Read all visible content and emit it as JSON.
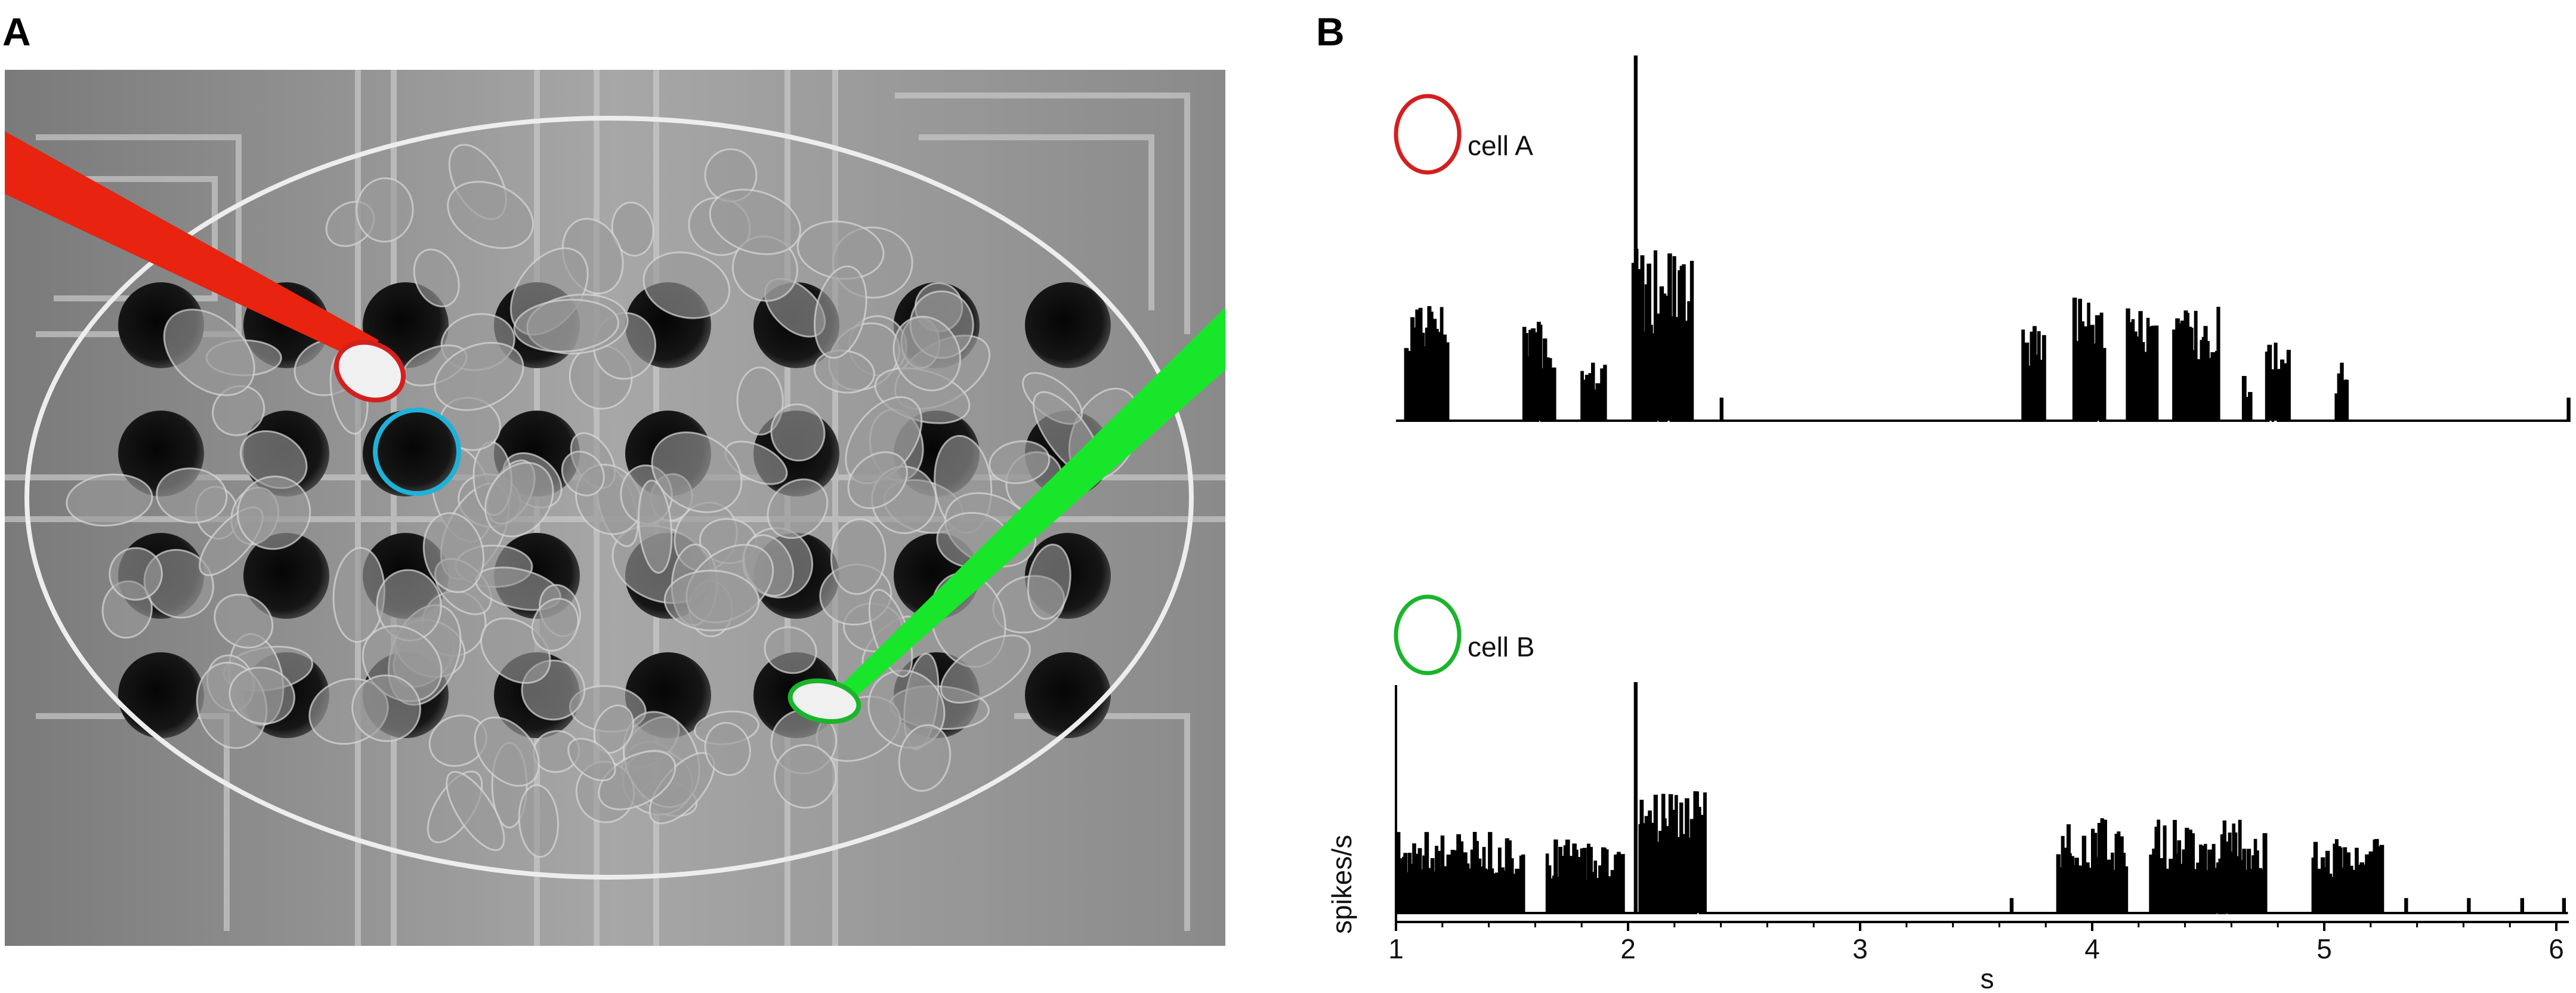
{
  "panels": {
    "A": {
      "letter": "A"
    },
    "B": {
      "letter": "B"
    }
  },
  "colors": {
    "electrode_a": "#e8230f",
    "electrode_b": "#18e62a",
    "cell_a_outline": "#d41f1f",
    "cell_b_outline": "#19b52a",
    "highlight_cell": "#1fb2d9",
    "background_photo": "#8e8e8e"
  },
  "traces": [
    {
      "id": "cellA",
      "label": "cell A",
      "color": "#d41f1f"
    },
    {
      "id": "cellB",
      "label": "cell B",
      "color": "#19b52a"
    }
  ],
  "axis": {
    "ylabel": "spikes/s",
    "xlabel": "s",
    "ticks": [
      "1",
      "2",
      "3",
      "4",
      "5",
      "6"
    ]
  },
  "chart_data": {
    "type": "line",
    "xlabel": "s",
    "ylabel": "spikes/s",
    "xlim": [
      1,
      6.05
    ],
    "series": [
      {
        "name": "cell A",
        "bursts": [
          [
            1.04,
            1.22,
            0.18,
            0.32
          ],
          [
            1.55,
            1.68,
            0.14,
            0.27
          ],
          [
            1.8,
            1.9,
            0.08,
            0.16
          ],
          [
            2.02,
            2.28,
            0.22,
            0.48
          ],
          [
            3.7,
            3.8,
            0.14,
            0.26
          ],
          [
            3.92,
            4.05,
            0.18,
            0.34
          ],
          [
            4.15,
            4.28,
            0.16,
            0.31
          ],
          [
            4.35,
            4.55,
            0.16,
            0.32
          ],
          [
            4.65,
            4.68,
            0.06,
            0.14
          ],
          [
            4.75,
            4.85,
            0.12,
            0.22
          ],
          [
            5.05,
            5.1,
            0.07,
            0.16
          ]
        ],
        "peaks": [
          [
            2.03,
            1.0
          ],
          [
            2.4,
            0.06
          ],
          [
            6.05,
            0.06
          ]
        ]
      },
      {
        "name": "cell B",
        "bursts": [
          [
            1.0,
            1.55,
            0.16,
            0.35
          ],
          [
            1.65,
            1.98,
            0.14,
            0.32
          ],
          [
            2.05,
            2.33,
            0.3,
            0.54
          ],
          [
            3.85,
            4.15,
            0.18,
            0.42
          ],
          [
            4.25,
            4.75,
            0.18,
            0.41
          ],
          [
            4.95,
            5.25,
            0.14,
            0.32
          ]
        ],
        "peaks": [
          [
            2.03,
            1.0
          ],
          [
            3.65,
            0.06
          ],
          [
            5.35,
            0.06
          ],
          [
            5.62,
            0.06
          ],
          [
            5.85,
            0.06
          ],
          [
            6.03,
            0.06
          ]
        ]
      }
    ]
  }
}
